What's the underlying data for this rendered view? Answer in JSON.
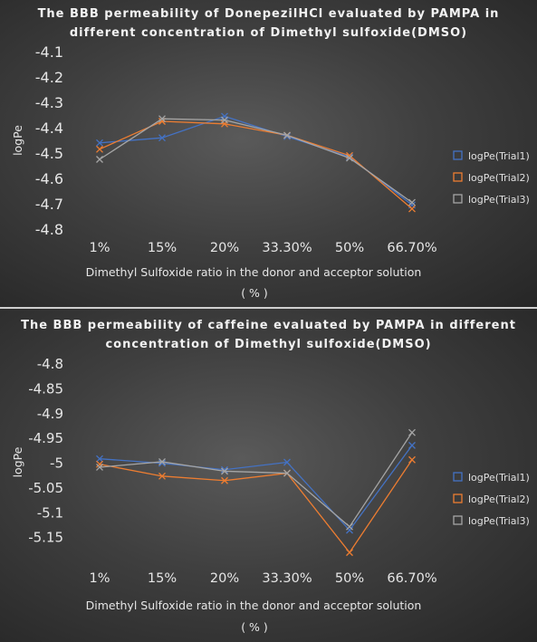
{
  "chart_data": [
    {
      "type": "line",
      "title": "The BBB permeability of DonepezilHCl evaluated by PAMPA in\ndifferent concentration  of Dimethyl sulfoxide(DMSO)",
      "xlabel": "Dimethyl Sulfoxide ratio in the donor and acceptor solution",
      "xlabel_unit": "( % )",
      "ylabel": "logPe",
      "categories": [
        "1%",
        "15%",
        "20%",
        "33.30%",
        "50%",
        "66.70%"
      ],
      "ylim": [
        -4.8,
        -4.1
      ],
      "yticks": [
        -4.1,
        -4.2,
        -4.3,
        -4.4,
        -4.5,
        -4.6,
        -4.7,
        -4.8
      ],
      "grid": false,
      "legend_position": "right",
      "series": [
        {
          "name": "logPe(Trial1)",
          "color": "#4472c4",
          "values": [
            -4.46,
            -4.44,
            -4.355,
            -4.435,
            -4.515,
            -4.705
          ]
        },
        {
          "name": "logPe(Trial2)",
          "color": "#ed7d31",
          "values": [
            -4.485,
            -4.375,
            -4.385,
            -4.43,
            -4.51,
            -4.72
          ]
        },
        {
          "name": "logPe(Trial3)",
          "color": "#a5a5a5",
          "values": [
            -4.525,
            -4.365,
            -4.37,
            -4.43,
            -4.52,
            -4.695
          ]
        }
      ]
    },
    {
      "type": "line",
      "title": "The BBB permeability of caffeine evaluated by PAMPA in different\nconcentration  of Dimethyl sulfoxide(DMSO)",
      "xlabel": "Dimethyl Sulfoxide ratio in the donor and acceptor solution",
      "xlabel_unit": "( % )",
      "ylabel": "logPe",
      "categories": [
        "1%",
        "15%",
        "20%",
        "33.30%",
        "50%",
        "66.70%"
      ],
      "ylim": [
        -5.2,
        -4.8
      ],
      "yticks": [
        -4.8,
        -4.85,
        -4.9,
        -4.95,
        -5,
        -5.05,
        -5.1,
        -5.15
      ],
      "grid": false,
      "legend_position": "right",
      "series": [
        {
          "name": "logPe(Trial1)",
          "color": "#4472c4",
          "values": [
            -4.993,
            -5.002,
            -5.015,
            -5.0,
            -5.137,
            -4.966
          ]
        },
        {
          "name": "logPe(Trial2)",
          "color": "#ed7d31",
          "values": [
            -5.004,
            -5.028,
            -5.037,
            -5.022,
            -5.182,
            -4.995
          ]
        },
        {
          "name": "logPe(Trial3)",
          "color": "#a5a5a5",
          "values": [
            -5.01,
            -4.999,
            -5.018,
            -5.022,
            -5.13,
            -4.94
          ]
        }
      ]
    }
  ]
}
